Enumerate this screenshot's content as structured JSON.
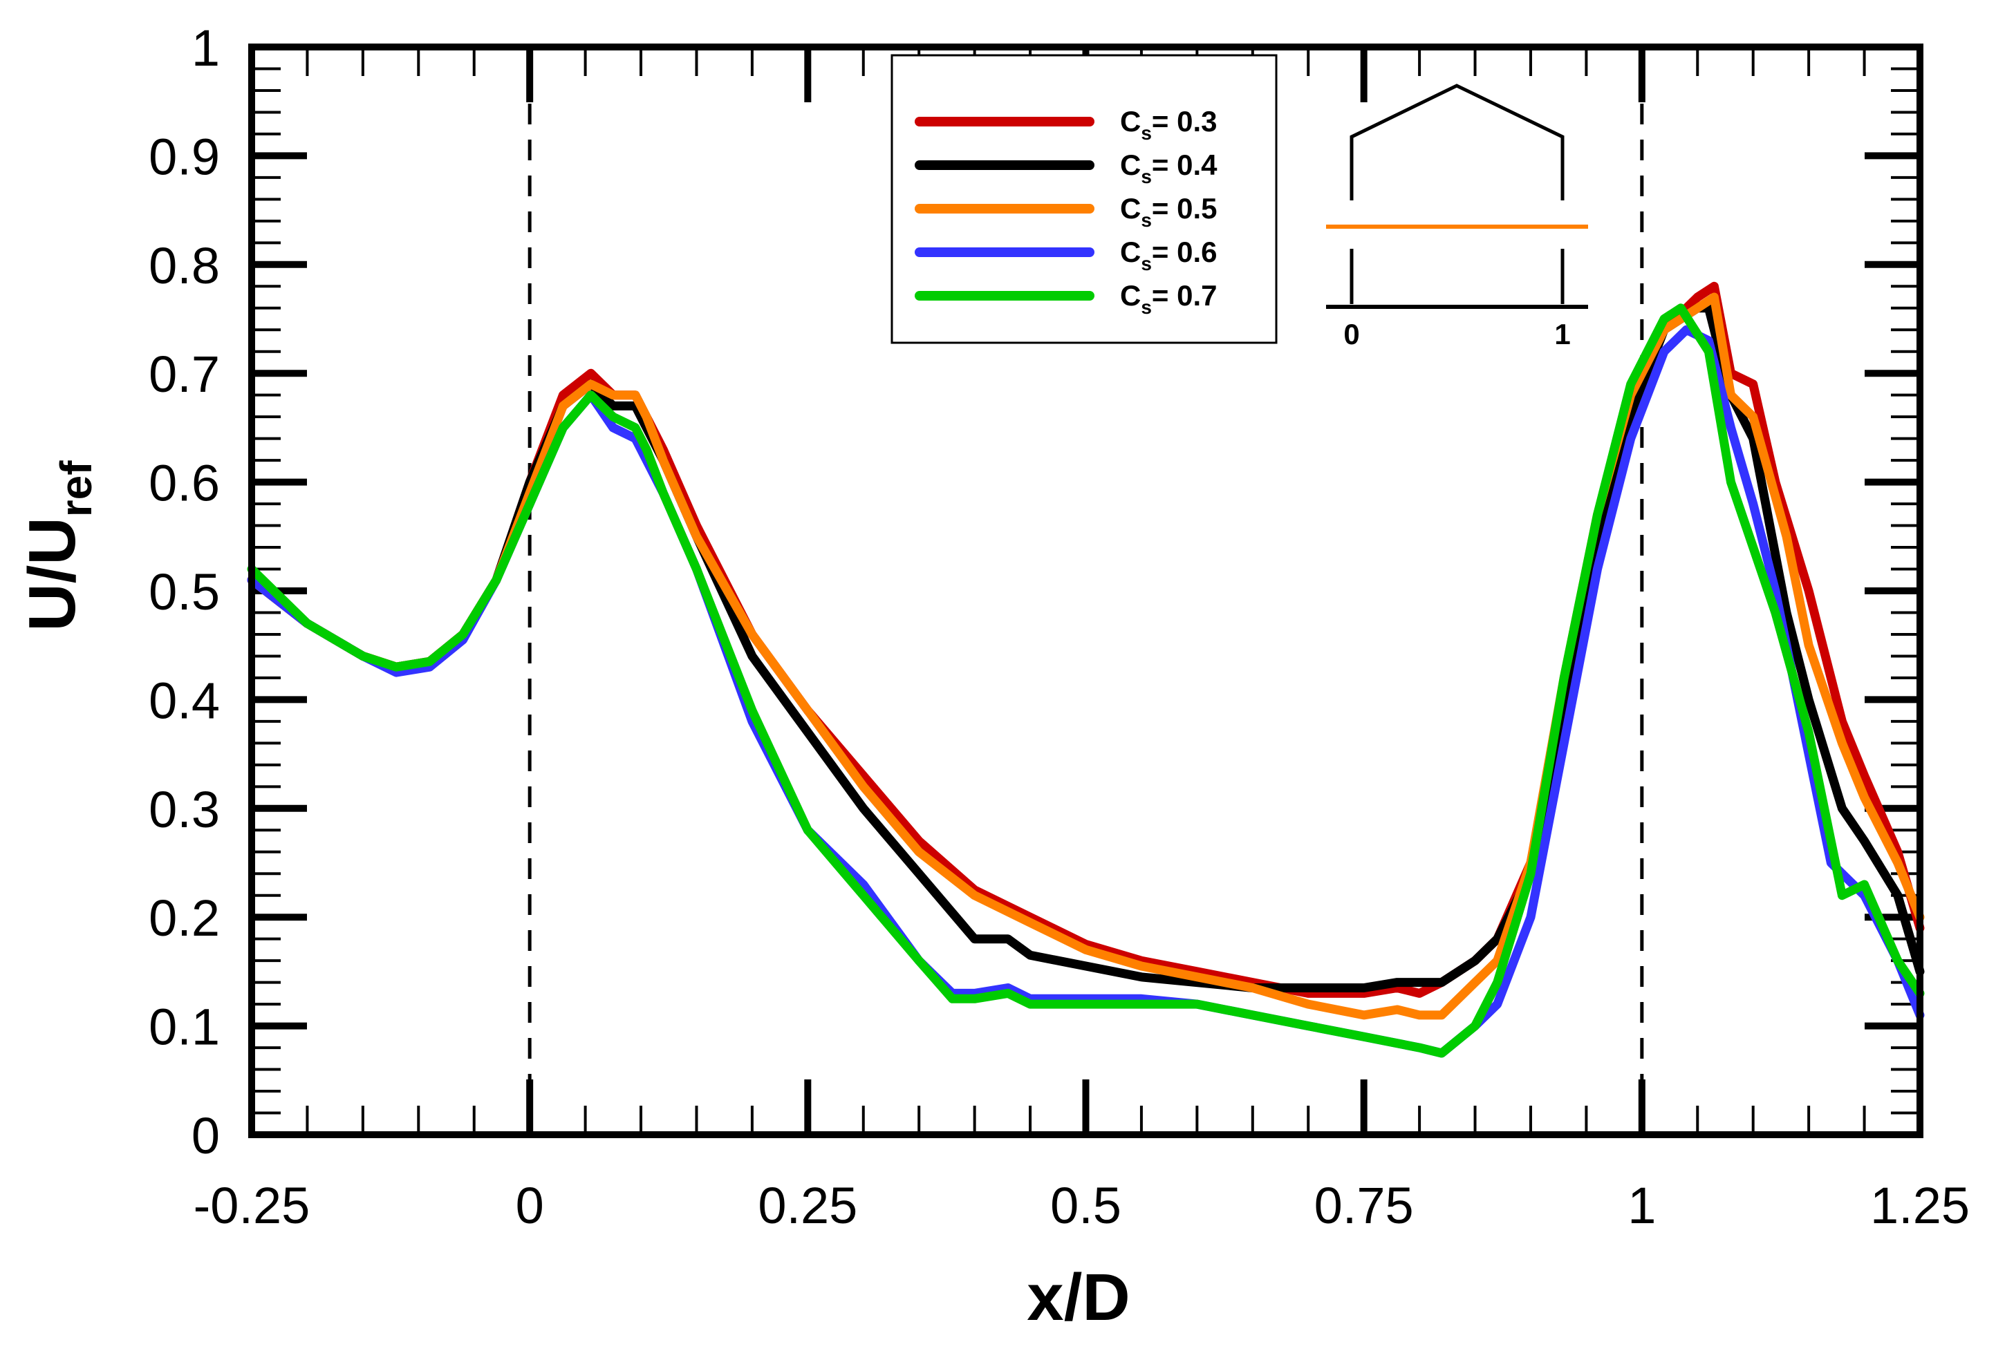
{
  "chart_data": {
    "type": "line",
    "title": "",
    "xlabel": "x/D",
    "ylabel_main": "U/U",
    "ylabel_sub": "ref",
    "xlim": [
      -0.25,
      1.25
    ],
    "ylim": [
      0,
      1
    ],
    "xticks": [
      -0.25,
      0,
      0.25,
      0.5,
      0.75,
      1,
      1.25
    ],
    "xtick_labels": [
      "-0.25",
      "0",
      "0.25",
      "0.5",
      "0.75",
      "1",
      "1.25"
    ],
    "yticks": [
      0,
      0.1,
      0.2,
      0.3,
      0.4,
      0.5,
      0.6,
      0.7,
      0.8,
      0.9,
      1
    ],
    "ytick_labels": [
      "0",
      "0.1",
      "0.2",
      "0.3",
      "0.4",
      "0.5",
      "0.6",
      "0.7",
      "0.8",
      "0.9",
      "1"
    ],
    "vlines": [
      0,
      1
    ],
    "legend_position": "top-center",
    "legend_symbol": "C",
    "legend_subscript": "s",
    "series": [
      {
        "name": "Cs = 0.3",
        "value_label": "= 0.3",
        "color": "#cc0000",
        "points": [
          [
            -0.25,
            0.51
          ],
          [
            -0.2,
            0.47
          ],
          [
            -0.15,
            0.44
          ],
          [
            -0.12,
            0.43
          ],
          [
            -0.09,
            0.435
          ],
          [
            -0.06,
            0.46
          ],
          [
            -0.03,
            0.51
          ],
          [
            0,
            0.6
          ],
          [
            0.03,
            0.68
          ],
          [
            0.055,
            0.7
          ],
          [
            0.075,
            0.68
          ],
          [
            0.095,
            0.68
          ],
          [
            0.105,
            0.66
          ],
          [
            0.12,
            0.63
          ],
          [
            0.15,
            0.56
          ],
          [
            0.2,
            0.46
          ],
          [
            0.25,
            0.39
          ],
          [
            0.3,
            0.33
          ],
          [
            0.35,
            0.27
          ],
          [
            0.4,
            0.225
          ],
          [
            0.45,
            0.2
          ],
          [
            0.5,
            0.175
          ],
          [
            0.55,
            0.16
          ],
          [
            0.6,
            0.15
          ],
          [
            0.65,
            0.14
          ],
          [
            0.7,
            0.13
          ],
          [
            0.75,
            0.13
          ],
          [
            0.78,
            0.135
          ],
          [
            0.8,
            0.13
          ],
          [
            0.82,
            0.14
          ],
          [
            0.85,
            0.16
          ],
          [
            0.87,
            0.18
          ],
          [
            0.9,
            0.25
          ],
          [
            0.93,
            0.4
          ],
          [
            0.96,
            0.56
          ],
          [
            0.99,
            0.68
          ],
          [
            1.02,
            0.74
          ],
          [
            1.05,
            0.77
          ],
          [
            1.065,
            0.78
          ],
          [
            1.08,
            0.7
          ],
          [
            1.1,
            0.69
          ],
          [
            1.12,
            0.6
          ],
          [
            1.15,
            0.5
          ],
          [
            1.18,
            0.38
          ],
          [
            1.2,
            0.33
          ],
          [
            1.23,
            0.26
          ],
          [
            1.25,
            0.19
          ]
        ]
      },
      {
        "name": "Cs = 0.4",
        "value_label": "= 0.4",
        "color": "#000000",
        "points": [
          [
            -0.25,
            0.51
          ],
          [
            -0.2,
            0.47
          ],
          [
            -0.15,
            0.44
          ],
          [
            -0.12,
            0.43
          ],
          [
            -0.09,
            0.435
          ],
          [
            -0.06,
            0.46
          ],
          [
            -0.03,
            0.51
          ],
          [
            0,
            0.6
          ],
          [
            0.03,
            0.67
          ],
          [
            0.055,
            0.69
          ],
          [
            0.075,
            0.67
          ],
          [
            0.095,
            0.67
          ],
          [
            0.105,
            0.65
          ],
          [
            0.12,
            0.62
          ],
          [
            0.15,
            0.55
          ],
          [
            0.2,
            0.44
          ],
          [
            0.25,
            0.37
          ],
          [
            0.3,
            0.3
          ],
          [
            0.35,
            0.24
          ],
          [
            0.4,
            0.18
          ],
          [
            0.43,
            0.18
          ],
          [
            0.45,
            0.165
          ],
          [
            0.5,
            0.155
          ],
          [
            0.55,
            0.145
          ],
          [
            0.6,
            0.14
          ],
          [
            0.65,
            0.135
          ],
          [
            0.7,
            0.135
          ],
          [
            0.75,
            0.135
          ],
          [
            0.78,
            0.14
          ],
          [
            0.8,
            0.14
          ],
          [
            0.82,
            0.14
          ],
          [
            0.85,
            0.16
          ],
          [
            0.87,
            0.18
          ],
          [
            0.9,
            0.24
          ],
          [
            0.93,
            0.38
          ],
          [
            0.96,
            0.54
          ],
          [
            0.99,
            0.66
          ],
          [
            1.02,
            0.74
          ],
          [
            1.05,
            0.76
          ],
          [
            1.06,
            0.76
          ],
          [
            1.08,
            0.68
          ],
          [
            1.1,
            0.64
          ],
          [
            1.13,
            0.48
          ],
          [
            1.15,
            0.4
          ],
          [
            1.18,
            0.3
          ],
          [
            1.2,
            0.27
          ],
          [
            1.23,
            0.22
          ],
          [
            1.25,
            0.15
          ]
        ]
      },
      {
        "name": "Cs = 0.5",
        "value_label": "= 0.5",
        "color": "#ff8000",
        "points": [
          [
            -0.25,
            0.51
          ],
          [
            -0.2,
            0.47
          ],
          [
            -0.15,
            0.44
          ],
          [
            -0.12,
            0.43
          ],
          [
            -0.09,
            0.435
          ],
          [
            -0.06,
            0.46
          ],
          [
            -0.03,
            0.51
          ],
          [
            0,
            0.59
          ],
          [
            0.03,
            0.67
          ],
          [
            0.055,
            0.69
          ],
          [
            0.075,
            0.68
          ],
          [
            0.095,
            0.68
          ],
          [
            0.105,
            0.66
          ],
          [
            0.12,
            0.62
          ],
          [
            0.15,
            0.55
          ],
          [
            0.2,
            0.46
          ],
          [
            0.25,
            0.39
          ],
          [
            0.3,
            0.32
          ],
          [
            0.35,
            0.26
          ],
          [
            0.4,
            0.22
          ],
          [
            0.45,
            0.195
          ],
          [
            0.5,
            0.17
          ],
          [
            0.55,
            0.155
          ],
          [
            0.6,
            0.145
          ],
          [
            0.65,
            0.135
          ],
          [
            0.7,
            0.12
          ],
          [
            0.75,
            0.11
          ],
          [
            0.78,
            0.115
          ],
          [
            0.8,
            0.11
          ],
          [
            0.82,
            0.11
          ],
          [
            0.85,
            0.14
          ],
          [
            0.87,
            0.16
          ],
          [
            0.9,
            0.25
          ],
          [
            0.93,
            0.42
          ],
          [
            0.96,
            0.57
          ],
          [
            0.99,
            0.68
          ],
          [
            1.02,
            0.74
          ],
          [
            1.05,
            0.76
          ],
          [
            1.065,
            0.77
          ],
          [
            1.08,
            0.68
          ],
          [
            1.1,
            0.66
          ],
          [
            1.13,
            0.55
          ],
          [
            1.15,
            0.45
          ],
          [
            1.18,
            0.36
          ],
          [
            1.2,
            0.31
          ],
          [
            1.23,
            0.25
          ],
          [
            1.25,
            0.2
          ]
        ]
      },
      {
        "name": "Cs = 0.6",
        "value_label": "= 0.6",
        "color": "#3333ff",
        "points": [
          [
            -0.25,
            0.51
          ],
          [
            -0.2,
            0.47
          ],
          [
            -0.15,
            0.44
          ],
          [
            -0.12,
            0.425
          ],
          [
            -0.09,
            0.43
          ],
          [
            -0.06,
            0.455
          ],
          [
            -0.03,
            0.51
          ],
          [
            0,
            0.58
          ],
          [
            0.03,
            0.65
          ],
          [
            0.055,
            0.68
          ],
          [
            0.075,
            0.65
          ],
          [
            0.095,
            0.64
          ],
          [
            0.105,
            0.62
          ],
          [
            0.12,
            0.59
          ],
          [
            0.15,
            0.52
          ],
          [
            0.2,
            0.38
          ],
          [
            0.25,
            0.28
          ],
          [
            0.3,
            0.23
          ],
          [
            0.35,
            0.16
          ],
          [
            0.38,
            0.13
          ],
          [
            0.4,
            0.13
          ],
          [
            0.43,
            0.135
          ],
          [
            0.45,
            0.125
          ],
          [
            0.5,
            0.125
          ],
          [
            0.55,
            0.125
          ],
          [
            0.6,
            0.12
          ],
          [
            0.65,
            0.11
          ],
          [
            0.7,
            0.1
          ],
          [
            0.75,
            0.09
          ],
          [
            0.8,
            0.08
          ],
          [
            0.82,
            0.075
          ],
          [
            0.85,
            0.1
          ],
          [
            0.87,
            0.12
          ],
          [
            0.9,
            0.2
          ],
          [
            0.93,
            0.36
          ],
          [
            0.96,
            0.52
          ],
          [
            0.99,
            0.64
          ],
          [
            1.02,
            0.72
          ],
          [
            1.04,
            0.74
          ],
          [
            1.06,
            0.73
          ],
          [
            1.08,
            0.65
          ],
          [
            1.1,
            0.58
          ],
          [
            1.12,
            0.5
          ],
          [
            1.14,
            0.4
          ],
          [
            1.17,
            0.25
          ],
          [
            1.2,
            0.22
          ],
          [
            1.23,
            0.16
          ],
          [
            1.25,
            0.11
          ]
        ]
      },
      {
        "name": "Cs = 0.7",
        "value_label": "= 0.7",
        "color": "#00cc00",
        "points": [
          [
            -0.25,
            0.52
          ],
          [
            -0.2,
            0.47
          ],
          [
            -0.15,
            0.44
          ],
          [
            -0.12,
            0.43
          ],
          [
            -0.09,
            0.435
          ],
          [
            -0.06,
            0.46
          ],
          [
            -0.03,
            0.51
          ],
          [
            0,
            0.58
          ],
          [
            0.03,
            0.65
          ],
          [
            0.055,
            0.68
          ],
          [
            0.075,
            0.66
          ],
          [
            0.095,
            0.65
          ],
          [
            0.105,
            0.63
          ],
          [
            0.12,
            0.59
          ],
          [
            0.15,
            0.52
          ],
          [
            0.2,
            0.39
          ],
          [
            0.25,
            0.28
          ],
          [
            0.3,
            0.22
          ],
          [
            0.35,
            0.16
          ],
          [
            0.38,
            0.125
          ],
          [
            0.4,
            0.125
          ],
          [
            0.43,
            0.13
          ],
          [
            0.45,
            0.12
          ],
          [
            0.5,
            0.12
          ],
          [
            0.55,
            0.12
          ],
          [
            0.6,
            0.12
          ],
          [
            0.65,
            0.11
          ],
          [
            0.7,
            0.1
          ],
          [
            0.75,
            0.09
          ],
          [
            0.8,
            0.08
          ],
          [
            0.82,
            0.075
          ],
          [
            0.85,
            0.1
          ],
          [
            0.87,
            0.14
          ],
          [
            0.9,
            0.24
          ],
          [
            0.93,
            0.42
          ],
          [
            0.96,
            0.57
          ],
          [
            0.99,
            0.69
          ],
          [
            1.02,
            0.75
          ],
          [
            1.035,
            0.76
          ],
          [
            1.06,
            0.72
          ],
          [
            1.08,
            0.6
          ],
          [
            1.1,
            0.54
          ],
          [
            1.12,
            0.48
          ],
          [
            1.15,
            0.37
          ],
          [
            1.18,
            0.22
          ],
          [
            1.2,
            0.23
          ],
          [
            1.23,
            0.16
          ],
          [
            1.25,
            0.13
          ]
        ]
      }
    ],
    "inset": {
      "tick_labels": [
        "0",
        "1"
      ],
      "line_color": "#ff8000"
    }
  }
}
